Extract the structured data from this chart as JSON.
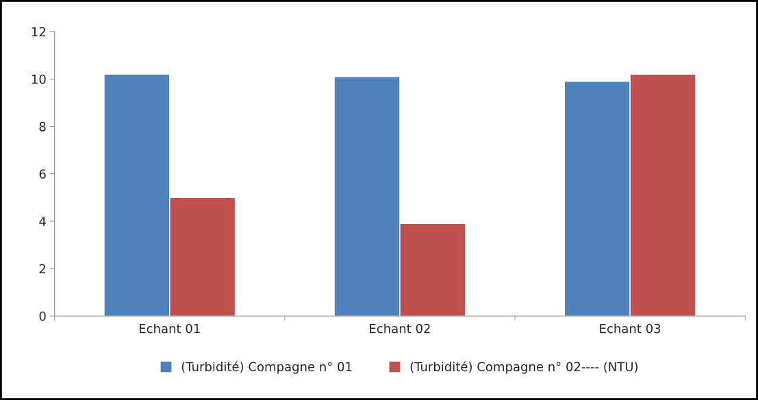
{
  "chart_data": {
    "type": "bar",
    "categories": [
      "Echant 01",
      "Echant 02",
      "Echant 03"
    ],
    "series": [
      {
        "name": "(Turbidité) Compagne n° 01",
        "color": "#4f81bd",
        "values": [
          10.2,
          10.1,
          9.9
        ]
      },
      {
        "name": "(Turbidité) Compagne n° 02---- (NTU)",
        "color": "#c0504d",
        "values": [
          5.0,
          3.9,
          10.2
        ]
      }
    ],
    "ylim": [
      0,
      12
    ],
    "yticks": [
      0,
      2,
      4,
      6,
      8,
      10,
      12
    ],
    "grid": false,
    "legend": "bottom"
  }
}
